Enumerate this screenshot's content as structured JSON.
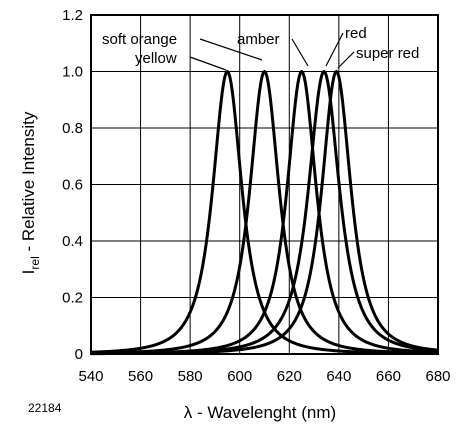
{
  "figure_number": "22184",
  "chart_data": {
    "type": "line",
    "xlabel": "λ - Wavelenght (nm)",
    "ylabel_main": "I",
    "ylabel_sub": "rel",
    "ylabel_rest": " - Relative Intensity",
    "xlim": [
      540,
      680
    ],
    "ylim": [
      0,
      1.2
    ],
    "xticks": [
      540,
      560,
      580,
      600,
      620,
      640,
      660,
      680
    ],
    "yticks": [
      0,
      0.2,
      0.4,
      0.6,
      0.8,
      1.0,
      1.2
    ],
    "ytick_labels": [
      "0",
      "0.2",
      "0.4",
      "0.6",
      "0.8",
      "1.0",
      "1.2"
    ],
    "grid": true,
    "line_color": "#000000",
    "series": [
      {
        "name": "yellow",
        "peak_x": 595,
        "fwhm": 17,
        "peak_y": 1.0
      },
      {
        "name": "soft orange",
        "peak_x": 610,
        "fwhm": 17,
        "peak_y": 1.0
      },
      {
        "name": "amber",
        "peak_x": 625,
        "fwhm": 17,
        "peak_y": 1.0
      },
      {
        "name": "red",
        "peak_x": 634,
        "fwhm": 18,
        "peak_y": 1.0
      },
      {
        "name": "super red",
        "peak_x": 639,
        "fwhm": 17,
        "peak_y": 1.0
      }
    ],
    "annotations": [
      {
        "text": "soft orange",
        "target_series": "soft orange"
      },
      {
        "text": "yellow",
        "target_series": "yellow"
      },
      {
        "text": "amber",
        "target_series": "amber"
      },
      {
        "text": "red",
        "target_series": "red"
      },
      {
        "text": "super red",
        "target_series": "super red"
      }
    ]
  }
}
